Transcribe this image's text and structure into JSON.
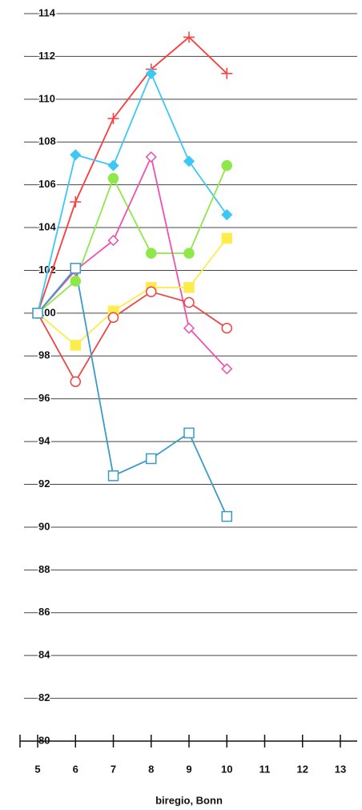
{
  "chart_data": {
    "type": "line",
    "xlabel": "biregio, Bonn",
    "x": [
      5,
      6,
      7,
      8,
      9,
      10
    ],
    "series": [
      {
        "color": "#ff3b3b",
        "marker": "plus",
        "filled": false,
        "values": [
          100,
          105.2,
          109.1,
          111.4,
          112.9,
          111.2
        ]
      },
      {
        "color": "#3cc8f5",
        "marker": "diamond",
        "filled": true,
        "values": [
          100,
          107.4,
          106.9,
          111.2,
          107.1,
          104.6
        ]
      },
      {
        "color": "#8ee84a",
        "marker": "circle",
        "filled": true,
        "values": [
          100,
          101.5,
          106.3,
          102.8,
          102.8,
          106.9
        ]
      },
      {
        "color": "#f050b0",
        "marker": "diamond",
        "filled": false,
        "values": [
          100,
          102,
          103.4,
          107.3,
          99.3,
          97.4
        ]
      },
      {
        "color": "#fdec4a",
        "marker": "square",
        "filled": true,
        "values": [
          100,
          98.5,
          100.1,
          101.2,
          101.2,
          103.5
        ]
      },
      {
        "color": "#f04545",
        "marker": "circle",
        "filled": false,
        "values": [
          100,
          96.8,
          99.8,
          101,
          100.5,
          99.3
        ]
      },
      {
        "color": "#3a9ac8",
        "marker": "square",
        "filled": false,
        "values": [
          100,
          102.1,
          92.4,
          93.2,
          94.4,
          90.5
        ]
      }
    ],
    "xlim": [
      4.5,
      13.5
    ],
    "xticks": [
      5,
      6,
      7,
      8,
      9,
      10,
      11,
      12,
      13
    ],
    "ylim": [
      80,
      114
    ],
    "yticks": [
      80,
      82,
      84,
      86,
      88,
      90,
      92,
      94,
      96,
      98,
      100,
      102,
      104,
      106,
      108,
      110,
      112,
      114
    ],
    "grid": true
  }
}
